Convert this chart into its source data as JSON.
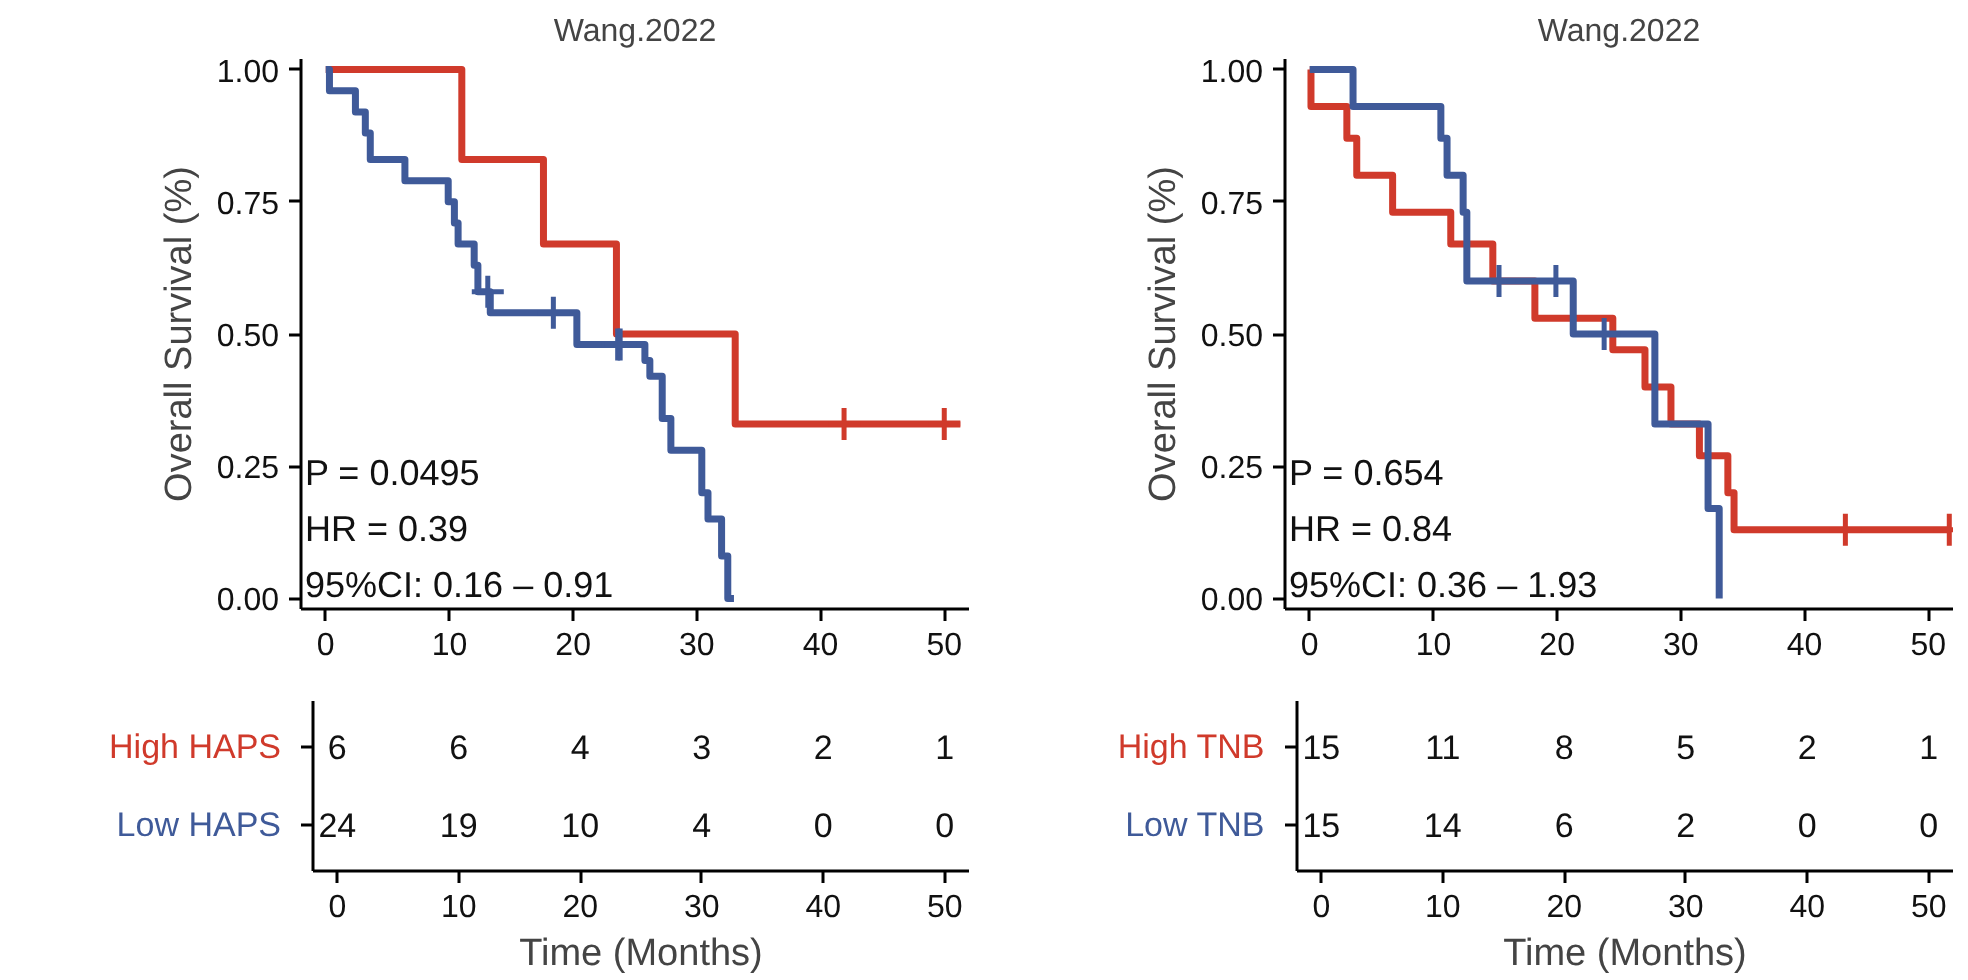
{
  "chart_data": [
    {
      "type": "step",
      "title": "Wang.2022",
      "ylabel": "Overall Survival (%)",
      "xlim": [
        -2,
        52
      ],
      "ylim": [
        -0.02,
        1.02
      ],
      "xticks": [
        0,
        10,
        20,
        30,
        40,
        50
      ],
      "yticks": [
        {
          "value": 0,
          "label": "0.00"
        },
        {
          "value": 0.25,
          "label": "0.25"
        },
        {
          "value": 0.5,
          "label": "0.50"
        },
        {
          "value": 0.75,
          "label": "0.75"
        },
        {
          "value": 1,
          "label": "1.00"
        }
      ],
      "grid": false,
      "line_style": "solid",
      "annotations": [
        "P = 0.0495",
        "HR = 0.39",
        "95%CI: 0.16 – 0.91"
      ],
      "series": [
        {
          "color": "#d03a2b",
          "x": [
            0,
            11,
            17.6,
            23.5,
            33.1,
            51.3
          ],
          "values": [
            1,
            0.83,
            0.67,
            0.5,
            0.33,
            0.33
          ]
        },
        {
          "color": "#3f5a99",
          "x": [
            0,
            0.3,
            2.4,
            3.2,
            3.6,
            6.4,
            9.9,
            10.4,
            10.7,
            12.0,
            12.3,
            13.3,
            20.3,
            25.8,
            26.2,
            27.2,
            27.9,
            30.4,
            30.9,
            32.0,
            32.5,
            33.0
          ],
          "values": [
            1,
            0.96,
            0.92,
            0.88,
            0.83,
            0.79,
            0.75,
            0.71,
            0.67,
            0.63,
            0.58,
            0.54,
            0.48,
            0.45,
            0.42,
            0.34,
            0.28,
            0.2,
            0.15,
            0.08,
            0,
            0
          ]
        },
        {
          "type": "scatter",
          "marker": "cross",
          "color": "#d03a2b",
          "x": [
            41.9,
            50
          ],
          "values": [
            0.33,
            0.33
          ]
        },
        {
          "type": "scatter",
          "marker": "cross",
          "color": "#3f5a99",
          "x": [
            13.1,
            18.4,
            23.6,
            23.8
          ],
          "values": [
            0.58,
            0.54,
            0.48,
            0.48
          ]
        }
      ]
    },
    {
      "type": "step",
      "title": "Wang.2022",
      "ylabel": "Overall Survival (%)",
      "xlim": [
        -2,
        52
      ],
      "ylim": [
        -0.02,
        1.02
      ],
      "xticks": [
        0,
        10,
        20,
        30,
        40,
        50
      ],
      "yticks": [
        {
          "value": 0,
          "label": "0.00"
        },
        {
          "value": 0.25,
          "label": "0.25"
        },
        {
          "value": 0.5,
          "label": "0.50"
        },
        {
          "value": 0.75,
          "label": "0.75"
        },
        {
          "value": 1,
          "label": "1.00"
        }
      ],
      "grid": false,
      "line_style": "solid",
      "annotations": [
        "P = 0.654",
        "HR = 0.84",
        "95%CI: 0.36 – 1.93"
      ],
      "series": [
        {
          "color": "#d03a2b",
          "x": [
            0,
            0.1,
            3.0,
            3.8,
            6.7,
            11.4,
            14.8,
            18.2,
            24.5,
            27.1,
            29.2,
            31.5,
            33.8,
            34.3,
            51.7
          ],
          "values": [
            1,
            0.93,
            0.87,
            0.8,
            0.73,
            0.67,
            0.6,
            0.53,
            0.47,
            0.4,
            0.33,
            0.27,
            0.2,
            0.13,
            0.13
          ]
        },
        {
          "color": "#3f5a99",
          "x": [
            0,
            3.5,
            10.6,
            11.1,
            12.4,
            12.7,
            21.3,
            27.9,
            32.2,
            33.1
          ],
          "values": [
            1,
            0.93,
            0.87,
            0.8,
            0.73,
            0.6,
            0.5,
            0.33,
            0.17,
            0
          ]
        },
        {
          "type": "scatter",
          "marker": "cross",
          "color": "#d03a2b",
          "x": [
            43.3,
            51.7
          ],
          "values": [
            0.13,
            0.13
          ]
        },
        {
          "type": "scatter",
          "marker": "cross",
          "color": "#3f5a99",
          "x": [
            15.3,
            19.9,
            23.8
          ],
          "values": [
            0.6,
            0.6,
            0.5
          ]
        }
      ]
    },
    {
      "type": "heatmap",
      "xlabel": "Time (Months)",
      "xlim": [
        -2,
        52
      ],
      "xticks": [
        0,
        10,
        20,
        30,
        40,
        50
      ],
      "x": [
        0,
        10,
        20,
        30,
        40,
        50
      ],
      "data_labels": true,
      "y_categories": [
        "High HAPS",
        "Low HAPS"
      ],
      "colors": [
        "#d03a2b",
        "#3f5a99"
      ],
      "cells": [
        [
          6,
          6,
          4,
          3,
          2,
          1
        ],
        [
          24,
          19,
          10,
          4,
          0,
          0
        ]
      ]
    },
    {
      "type": "heatmap",
      "xlabel": "Time (Months)",
      "xlim": [
        -2,
        52
      ],
      "xticks": [
        0,
        10,
        20,
        30,
        40,
        50
      ],
      "x": [
        0,
        10,
        20,
        30,
        40,
        50
      ],
      "data_labels": true,
      "y_categories": [
        "High TNB",
        "Low TNB"
      ],
      "colors": [
        "#d03a2b",
        "#3f5a99"
      ],
      "cells": [
        [
          15,
          11,
          8,
          5,
          2,
          1
        ],
        [
          15,
          14,
          6,
          2,
          0,
          0
        ]
      ]
    }
  ]
}
